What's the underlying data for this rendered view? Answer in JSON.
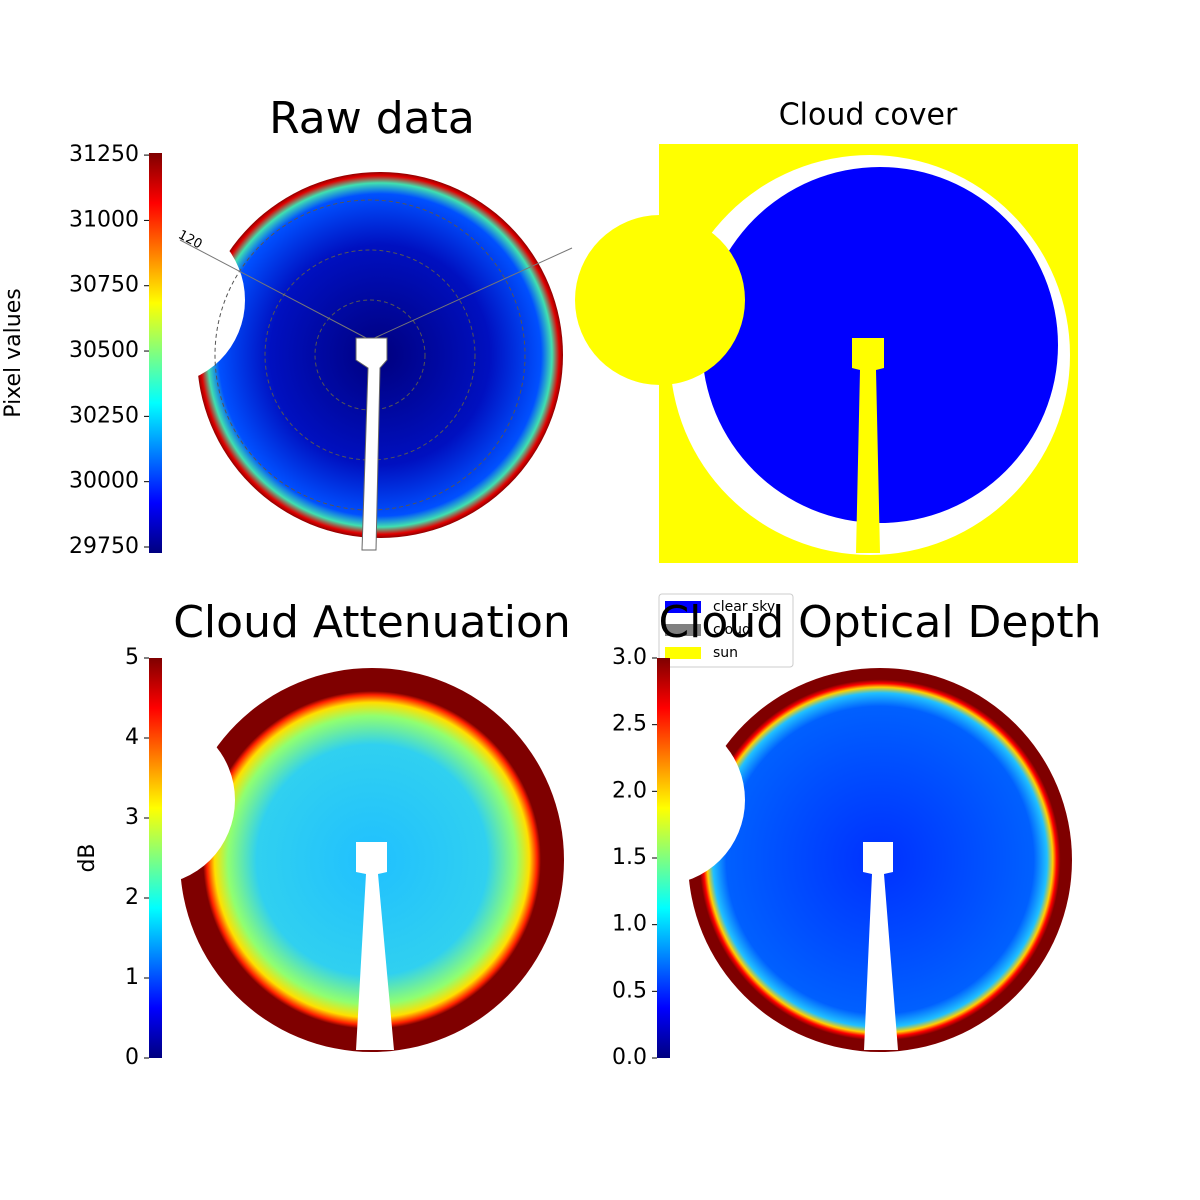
{
  "chart_data": [
    {
      "type": "image",
      "title": "Raw data",
      "colorbar_label": "Pixel values",
      "annotation": "120",
      "clim": [
        29727,
        31258
      ],
      "ticks": [
        29750,
        30000,
        30250,
        30500,
        30750,
        31000,
        31250
      ]
    },
    {
      "type": "mask",
      "title": "Cloud cover",
      "legend": [
        {
          "name": "clear sky",
          "color": "#0000ff"
        },
        {
          "name": "cloud",
          "color": "#808080"
        },
        {
          "name": "sun",
          "color": "#ffff00"
        }
      ]
    },
    {
      "type": "image",
      "title": "Cloud Attenuation",
      "colorbar_label": "dB",
      "clim": [
        0,
        5
      ],
      "ticks": [
        0,
        1,
        2,
        3,
        4,
        5
      ]
    },
    {
      "type": "image",
      "title": "Cloud Optical Depth",
      "clim": [
        0,
        3
      ],
      "ticks": [
        {
          "value": 0,
          "label": "0.0"
        },
        0.5,
        {
          "value": 1,
          "label": "1.0"
        },
        1.5,
        {
          "value": 2,
          "label": "2.0"
        },
        2.5,
        {
          "value": 3,
          "label": "3.0"
        }
      ]
    }
  ]
}
